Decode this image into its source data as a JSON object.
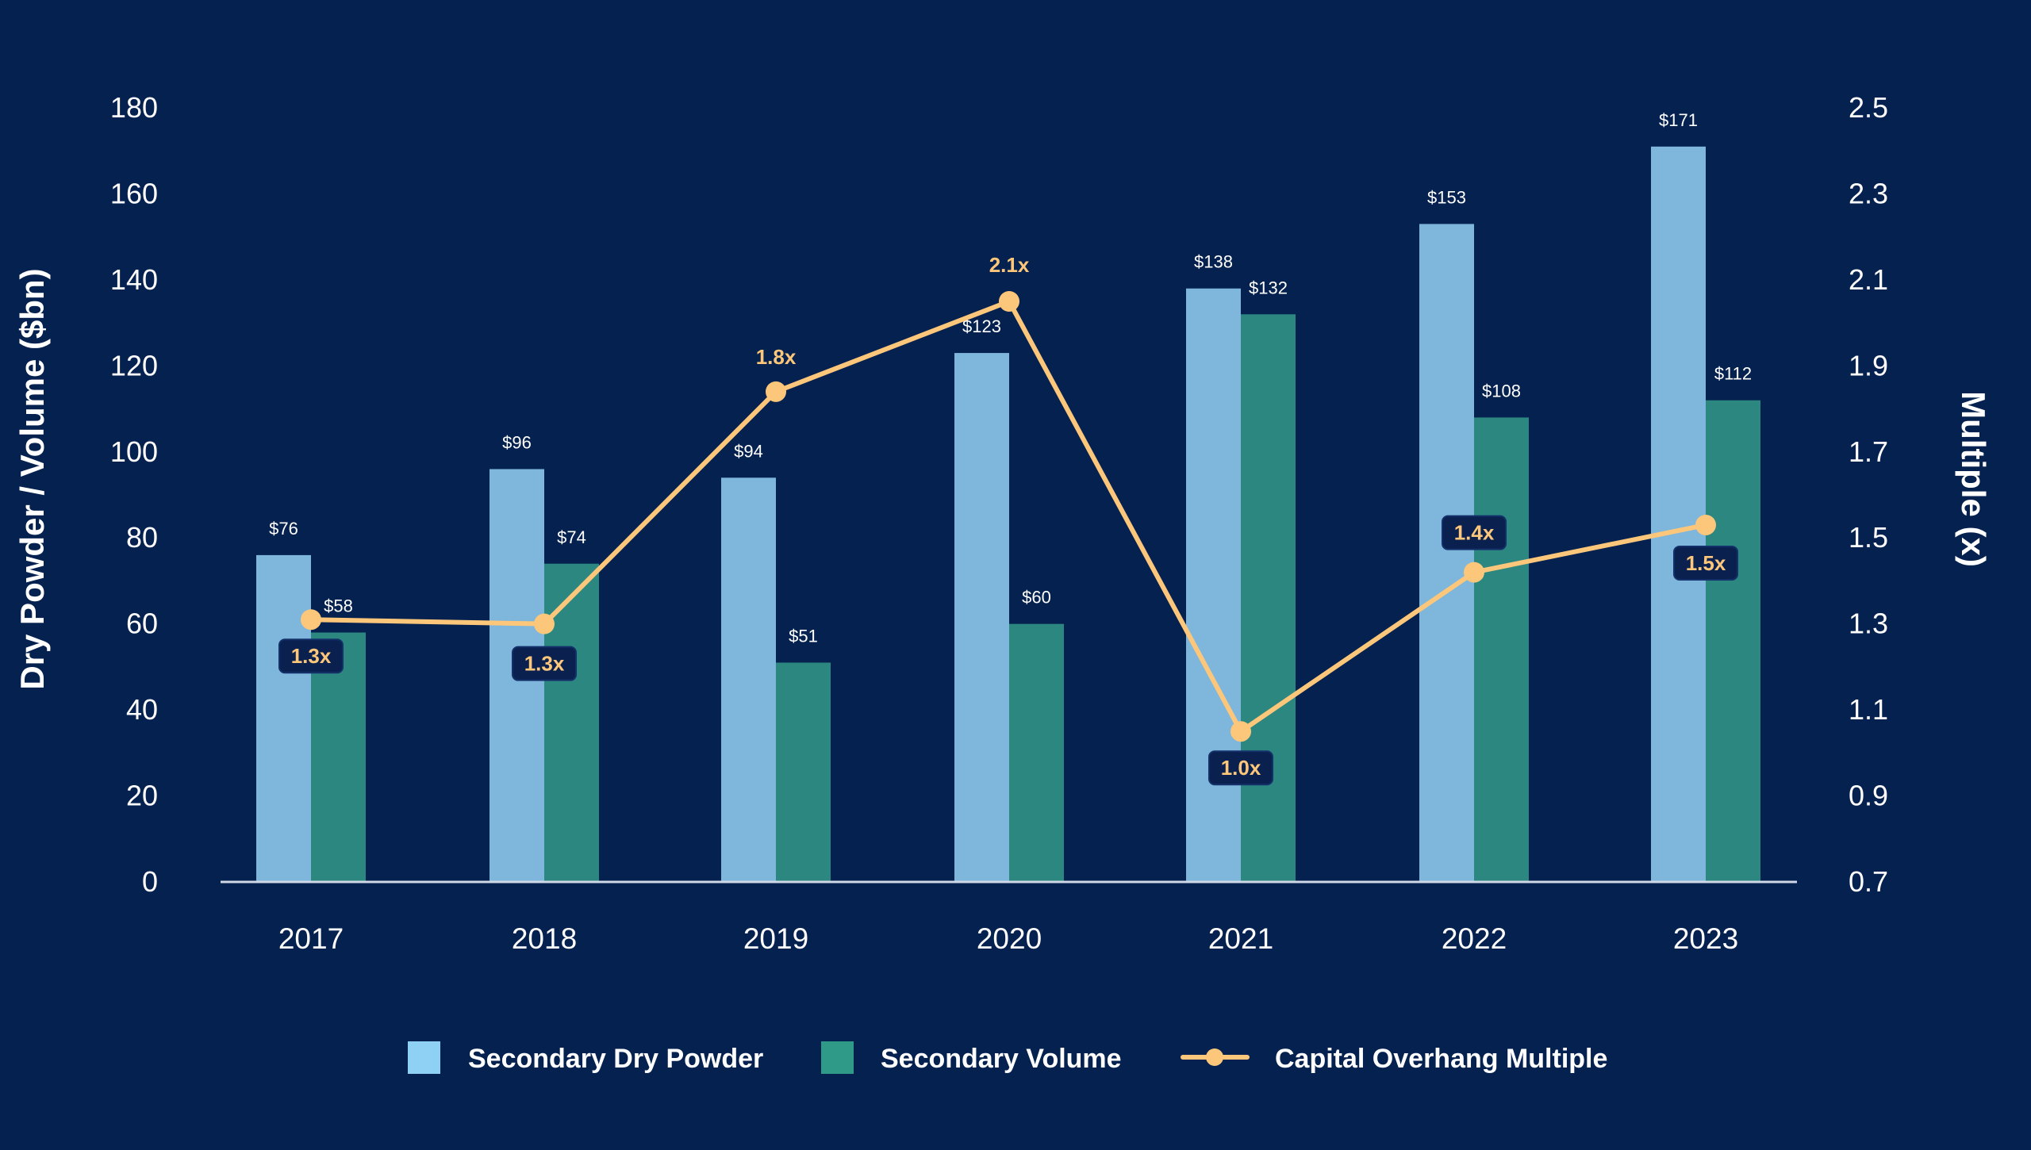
{
  "chart_data": {
    "type": "bar",
    "categories": [
      "2017",
      "2018",
      "2019",
      "2020",
      "2021",
      "2022",
      "2023"
    ],
    "series": [
      {
        "name": "Secondary Dry Powder",
        "type": "bar",
        "axis": "left",
        "color": "#7eb6dc",
        "legend_color": "#8fd0f5",
        "values": [
          76,
          96,
          94,
          123,
          138,
          153,
          171
        ],
        "labels": [
          "$76",
          "$96",
          "$94",
          "$123",
          "$138",
          "$153",
          "$171"
        ]
      },
      {
        "name": "Secondary Volume",
        "type": "bar",
        "axis": "left",
        "color": "#2c8780",
        "legend_color": "#2f9a88",
        "values": [
          58,
          74,
          51,
          60,
          132,
          108,
          112
        ],
        "labels": [
          "$58",
          "$74",
          "$51",
          "$60",
          "$132",
          "$108",
          "$112"
        ]
      },
      {
        "name": "Capital Overhang Multiple",
        "type": "line",
        "axis": "right",
        "color": "#fcc77a",
        "values": [
          1.31,
          1.3,
          1.84,
          2.05,
          1.05,
          1.42,
          1.53
        ],
        "labels": [
          "1.3x",
          "1.3x",
          "1.8x",
          "2.1x",
          "1.0x",
          "1.4x",
          "1.5x"
        ]
      }
    ],
    "ylabel": "Dry Powder / Volume ($bn)",
    "y2label": "Multiple (x)",
    "ylim": [
      0,
      180
    ],
    "y2lim": [
      0.7,
      2.5
    ],
    "yticks": [
      "0",
      "20",
      "40",
      "60",
      "80",
      "100",
      "120",
      "140",
      "160",
      "180"
    ],
    "y2ticks": [
      "0.7",
      "0.9",
      "1.1",
      "1.3",
      "1.5",
      "1.7",
      "1.9",
      "2.1",
      "2.3",
      "2.5"
    ],
    "grid": false,
    "legend_position": "bottom",
    "background": "#05214f"
  }
}
